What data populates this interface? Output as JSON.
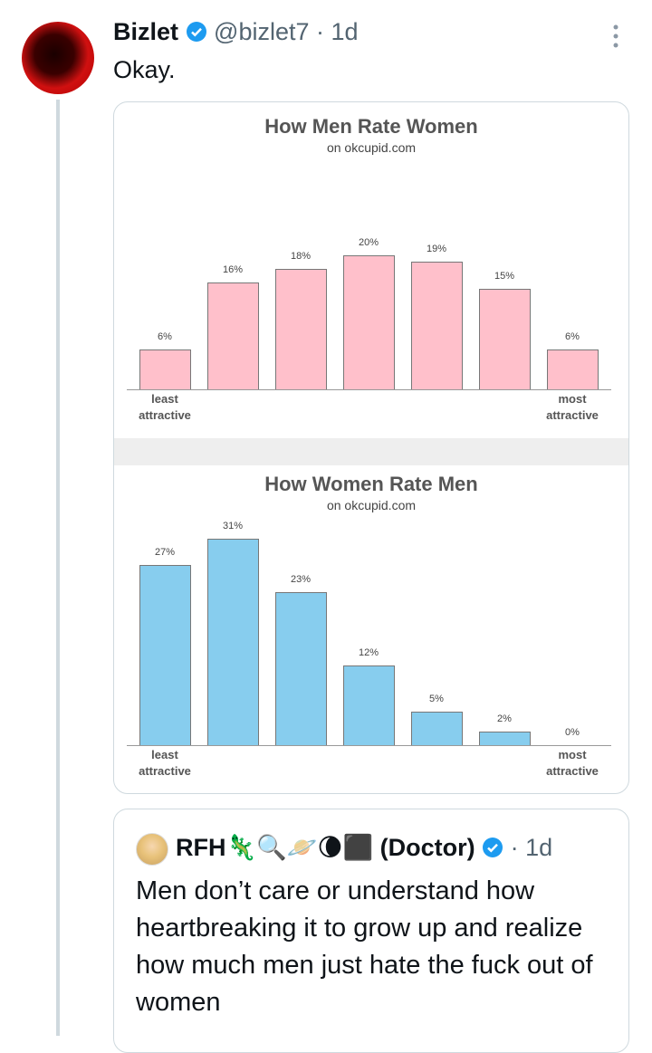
{
  "tweet": {
    "author": "Bizlet",
    "handle": "@bizlet7",
    "time": "· 1d",
    "text": "Okay."
  },
  "chart_data": [
    {
      "type": "bar",
      "title": "How Men Rate Women",
      "subtitle": "on okcupid.com",
      "categories": [
        "least\nattractive",
        null,
        null,
        null,
        null,
        null,
        "most\nattractive"
      ],
      "values": [
        6,
        16,
        18,
        20,
        19,
        15,
        6
      ],
      "value_labels": [
        "6%",
        "16%",
        "18%",
        "20%",
        "19%",
        "15%",
        "6%"
      ],
      "color": "#ffc0cb",
      "ylim": [
        0,
        32
      ]
    },
    {
      "type": "bar",
      "title": "How Women Rate Men",
      "subtitle": "on okcupid.com",
      "categories": [
        "least\nattractive",
        null,
        null,
        null,
        null,
        null,
        "most\nattractive"
      ],
      "values": [
        27,
        31,
        23,
        12,
        5,
        2,
        0
      ],
      "value_labels": [
        "27%",
        "31%",
        "23%",
        "12%",
        "5%",
        "2%",
        "0%"
      ],
      "color": "#87cdee",
      "ylim": [
        0,
        33
      ]
    }
  ],
  "quote": {
    "author": "RFH🦎🔍🪐🌘⬛ (Doctor)",
    "time": "· 1d",
    "text": "Men don’t care or understand how heartbreaking it to grow up and realize how much men just hate the fuck out of women"
  }
}
